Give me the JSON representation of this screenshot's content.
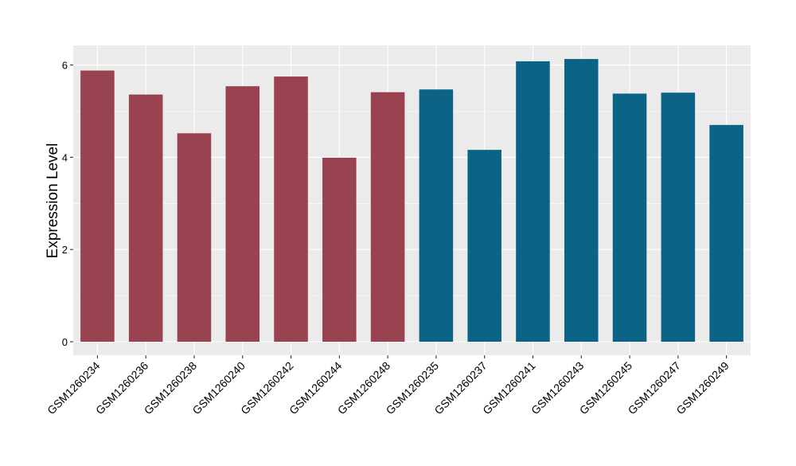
{
  "chart_data": {
    "type": "bar",
    "ylabel": "Expression Level",
    "xlabel": "",
    "ylim": [
      0,
      6.3
    ],
    "yticks": [
      0,
      2,
      4,
      6
    ],
    "grid": true,
    "legend": "none",
    "categories": [
      "GSM1260234",
      "GSM1260236",
      "GSM1260238",
      "GSM1260240",
      "GSM1260242",
      "GSM1260244",
      "GSM1260248",
      "GSM1260235",
      "GSM1260237",
      "GSM1260241",
      "GSM1260243",
      "GSM1260245",
      "GSM1260247",
      "GSM1260249"
    ],
    "values": [
      5.88,
      5.36,
      4.52,
      5.54,
      5.75,
      3.99,
      5.41,
      5.47,
      4.16,
      6.08,
      6.13,
      5.38,
      5.4,
      4.7
    ],
    "group_colors": [
      "#9A4350",
      "#9A4350",
      "#9A4350",
      "#9A4350",
      "#9A4350",
      "#9A4350",
      "#9A4350",
      "#0B6485",
      "#0B6485",
      "#0B6485",
      "#0B6485",
      "#0B6485",
      "#0B6485",
      "#0B6485"
    ],
    "panel_background": "#EBEBEB",
    "grid_color": "#FFFFFF"
  }
}
